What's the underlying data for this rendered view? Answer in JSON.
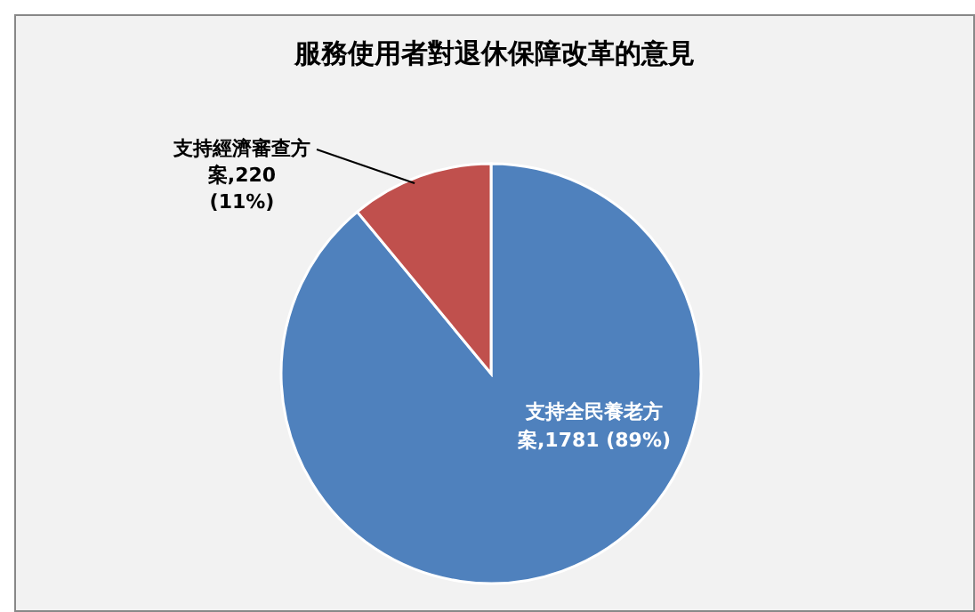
{
  "chart_data": {
    "type": "pie",
    "title": "服務使用者對退休保障改革的意見",
    "categories": [
      "支持全民養老方案",
      "支持經濟審查方案"
    ],
    "values": [
      1781,
      220
    ],
    "colors": [
      "#4f81bd",
      "#c0504d"
    ],
    "value_labels": [
      "1781 (89%)",
      "220 (11%)"
    ],
    "legend": false
  }
}
